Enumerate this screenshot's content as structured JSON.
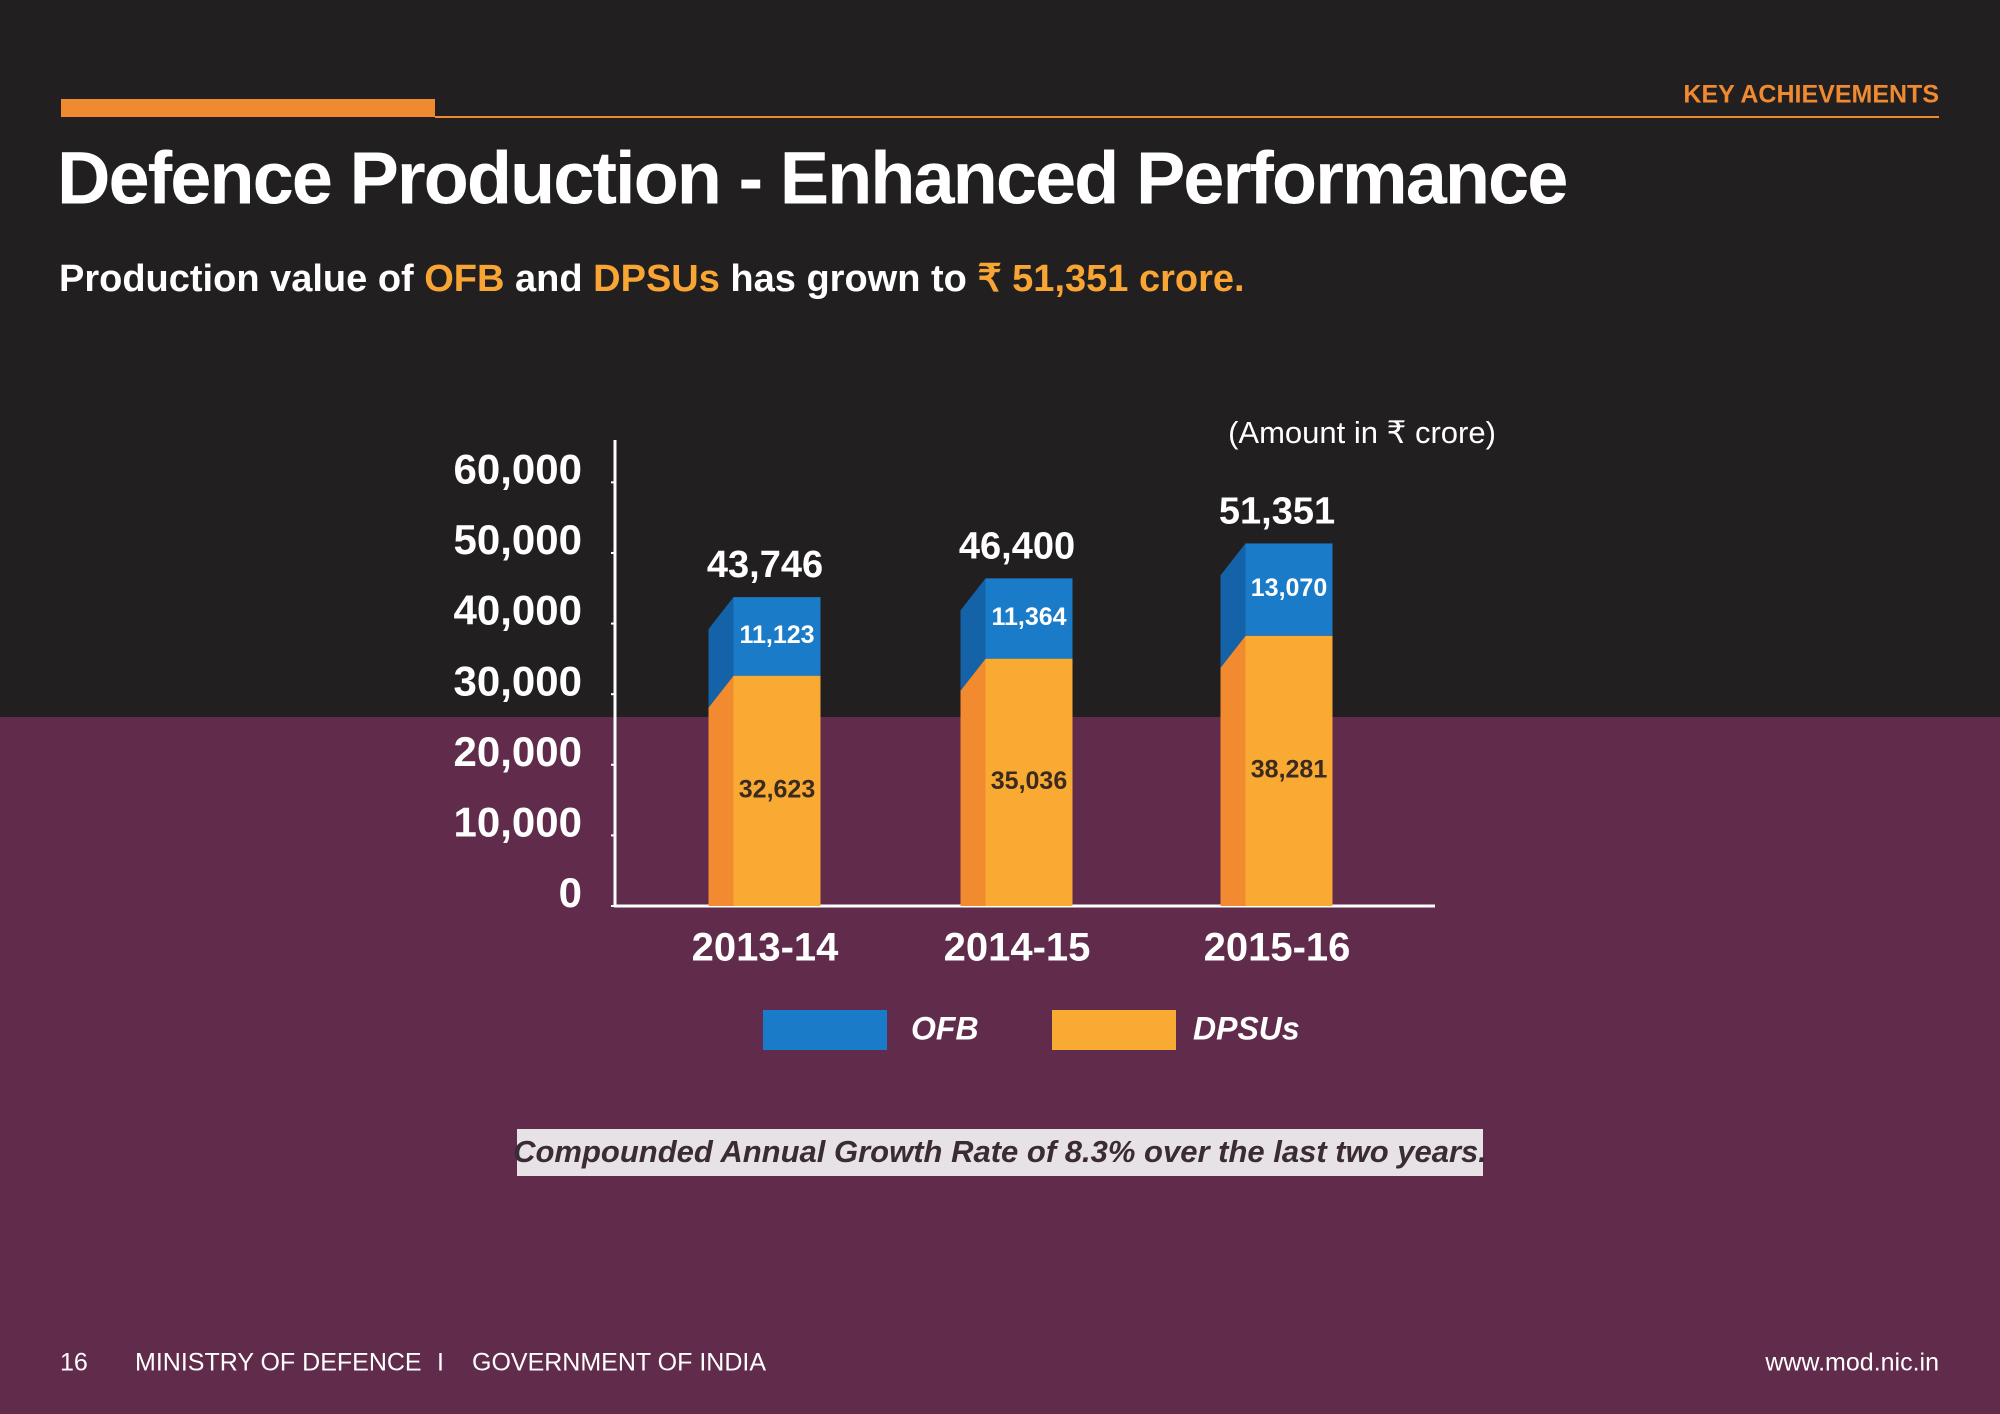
{
  "header": {
    "section": "KEY ACHIEVEMENTS",
    "title": "Defence Production - Enhanced Performance",
    "subtitle": [
      {
        "text": "Production value of ",
        "color": "#ffffff"
      },
      {
        "text": "OFB",
        "color": "#f9a534"
      },
      {
        "text": " and ",
        "color": "#ffffff"
      },
      {
        "text": "DPSUs",
        "color": "#f9a534"
      },
      {
        "text": " has grown to ",
        "color": "#ffffff"
      },
      {
        "text": "₹ 51,351 crore.",
        "color": "#f9a534"
      }
    ]
  },
  "chart_data": {
    "type": "bar",
    "stacked": true,
    "unit_note": "(Amount in ₹ crore)",
    "categories": [
      "2013-14",
      "2014-15",
      "2015-16"
    ],
    "series": [
      {
        "name": "OFB",
        "color": "#1a7bc8",
        "side_color": "#1462a8",
        "values": [
          11123,
          11364,
          13070
        ],
        "value_labels": [
          "11,123",
          "11,364",
          "13,070"
        ]
      },
      {
        "name": "DPSUs",
        "color": "#f9aa33",
        "side_color": "#f28a30",
        "values": [
          32623,
          35036,
          38281
        ],
        "value_labels": [
          "32,623",
          "35,036",
          "38,281"
        ]
      }
    ],
    "totals": [
      43746,
      46400,
      51351
    ],
    "total_labels": [
      "43,746",
      "46,400",
      "51,351"
    ],
    "ylim": [
      0,
      66000
    ],
    "yticks": [
      0,
      {
        "value": 10000,
        "label": "10,000"
      },
      {
        "value": 20000,
        "label": "20,000"
      },
      {
        "value": 30000,
        "label": "30,000"
      },
      {
        "value": 40000,
        "label": "40,000"
      },
      {
        "value": 50000,
        "label": "50,000"
      },
      {
        "value": 60000,
        "label": "60,000"
      }
    ]
  },
  "note": "Compounded Annual Growth Rate of 8.3% over the last two years.",
  "footer": {
    "page": "16",
    "ministry": "MINISTRY OF DEFENCE",
    "separator": "I",
    "government": "GOVERNMENT OF INDIA",
    "url": "www.mod.nic.in"
  }
}
